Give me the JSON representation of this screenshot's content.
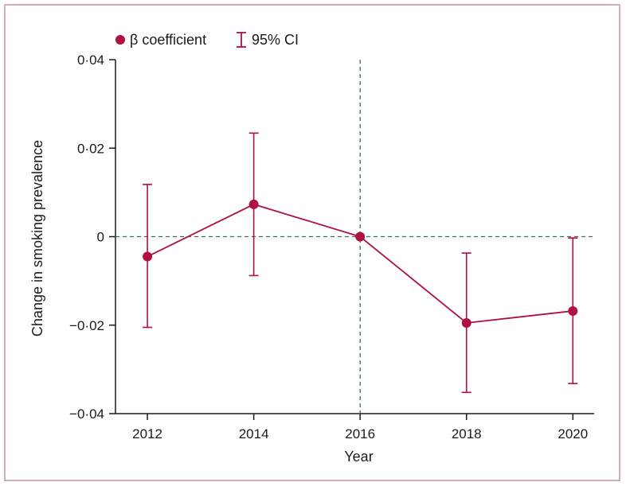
{
  "colors": {
    "series": "#b0103f",
    "axis": "#1a1a1a",
    "refline": "#3d6b6b",
    "frame": "#d7aab8"
  },
  "legend": {
    "marker_label": "β coefficient",
    "ci_label": "95% CI"
  },
  "chart_data": {
    "type": "line",
    "title": "",
    "xlabel": "Year",
    "ylabel": "Change in smoking prevalence",
    "x": [
      2012,
      2014,
      2016,
      2018,
      2020
    ],
    "series": [
      {
        "name": "β coefficient",
        "values": [
          -0.0045,
          0.0073,
          0.0,
          -0.0195,
          -0.0168
        ],
        "ci_lower": [
          -0.0205,
          -0.0088,
          0.0,
          -0.0352,
          -0.0332
        ],
        "ci_upper": [
          0.0118,
          0.0234,
          0.0,
          -0.0037,
          -0.0003
        ]
      }
    ],
    "xlim": [
      2011.4,
      2020.4
    ],
    "ylim": [
      -0.04,
      0.04
    ],
    "xticks": [
      2012,
      2014,
      2016,
      2018,
      2020
    ],
    "xtick_labels": [
      "2012",
      "2014",
      "2016",
      "2018",
      "2020"
    ],
    "yticks": [
      0.04,
      0.02,
      0,
      -0.02,
      -0.04
    ],
    "ytick_labels": [
      "0·04",
      "0·02",
      "0",
      "−0·02",
      "−0·04"
    ],
    "reference_lines": {
      "horizontal": 0,
      "vertical": 2016
    },
    "grid": false,
    "legend_position": "top-left"
  }
}
